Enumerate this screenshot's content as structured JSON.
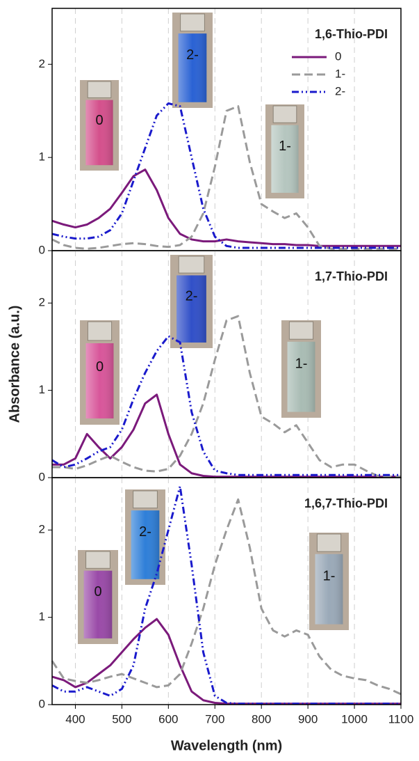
{
  "chart_data": [
    {
      "type": "line",
      "title": "1,6-Thio-PDI",
      "legend": "upper right",
      "grid": true,
      "x": [
        350,
        375,
        400,
        425,
        450,
        475,
        500,
        525,
        550,
        575,
        600,
        625,
        650,
        675,
        700,
        725,
        750,
        775,
        800,
        825,
        850,
        875,
        900,
        925,
        950,
        975,
        1000,
        1025,
        1050,
        1075,
        1100
      ],
      "xlim": [
        350,
        1100
      ],
      "ylim": [
        0,
        2.6
      ],
      "yticks": [
        0,
        1,
        2
      ],
      "series": [
        {
          "name": "0",
          "color": "#7b1a7b",
          "style": "solid",
          "values": [
            0.32,
            0.28,
            0.25,
            0.28,
            0.35,
            0.45,
            0.62,
            0.8,
            0.87,
            0.65,
            0.35,
            0.18,
            0.12,
            0.1,
            0.1,
            0.12,
            0.1,
            0.09,
            0.08,
            0.07,
            0.07,
            0.06,
            0.06,
            0.05,
            0.05,
            0.05,
            0.05,
            0.05,
            0.05,
            0.05,
            0.05
          ]
        },
        {
          "name": "1-",
          "color": "#9a9a9a",
          "style": "dash",
          "values": [
            0.12,
            0.06,
            0.03,
            0.02,
            0.03,
            0.05,
            0.07,
            0.08,
            0.07,
            0.05,
            0.04,
            0.06,
            0.15,
            0.4,
            0.9,
            1.5,
            1.55,
            0.95,
            0.5,
            0.42,
            0.35,
            0.4,
            0.25,
            0.05,
            0.02,
            0.02,
            0.02,
            0.02,
            0.02,
            0.02,
            0.02
          ]
        },
        {
          "name": "2-",
          "color": "#1a1acc",
          "style": "dashdotdot",
          "values": [
            0.18,
            0.15,
            0.13,
            0.13,
            0.15,
            0.22,
            0.4,
            0.75,
            1.1,
            1.45,
            1.58,
            1.55,
            1.0,
            0.45,
            0.15,
            0.05,
            0.03,
            0.03,
            0.03,
            0.03,
            0.03,
            0.03,
            0.03,
            0.03,
            0.03,
            0.03,
            0.03,
            0.03,
            0.03,
            0.03,
            0.03
          ]
        }
      ],
      "annotations": [
        {
          "text": "2-",
          "color": "#2a62d4"
        },
        {
          "text": "0",
          "color": "#d4508c"
        },
        {
          "text": "1-",
          "color": "#b5c6bf"
        }
      ]
    },
    {
      "type": "line",
      "title": "1,7-Thio-PDI",
      "ylabel": "Absorbance (a.u.)",
      "grid": true,
      "x": [
        350,
        375,
        400,
        425,
        450,
        475,
        500,
        525,
        550,
        575,
        600,
        625,
        650,
        675,
        700,
        725,
        750,
        775,
        800,
        825,
        850,
        875,
        900,
        925,
        950,
        975,
        1000,
        1025,
        1050,
        1075,
        1100
      ],
      "xlim": [
        350,
        1100
      ],
      "ylim": [
        0,
        2.6
      ],
      "yticks": [
        0,
        1,
        2
      ],
      "series": [
        {
          "color": "#7b1a7b",
          "style": "solid",
          "values": [
            0.15,
            0.15,
            0.22,
            0.5,
            0.35,
            0.22,
            0.35,
            0.55,
            0.85,
            0.95,
            0.5,
            0.15,
            0.05,
            0.02,
            0.01,
            0.01,
            0.01,
            0.01,
            0.01,
            0.01,
            0.01,
            0.01,
            0.01,
            0.01,
            0.01,
            0.01,
            0.01,
            0.01,
            0.01,
            0.01,
            0.01
          ]
        },
        {
          "color": "#9a9a9a",
          "style": "dash",
          "values": [
            0.12,
            0.12,
            0.1,
            0.14,
            0.2,
            0.25,
            0.18,
            0.12,
            0.08,
            0.07,
            0.1,
            0.25,
            0.5,
            0.85,
            1.35,
            1.8,
            1.85,
            1.2,
            0.7,
            0.62,
            0.52,
            0.6,
            0.4,
            0.2,
            0.12,
            0.15,
            0.15,
            0.08,
            0.02,
            0.01,
            0.01
          ]
        },
        {
          "color": "#1a1acc",
          "style": "dashdotdot",
          "values": [
            0.2,
            0.12,
            0.15,
            0.22,
            0.3,
            0.35,
            0.55,
            0.9,
            1.2,
            1.45,
            1.62,
            1.55,
            0.75,
            0.3,
            0.08,
            0.05,
            0.03,
            0.03,
            0.03,
            0.03,
            0.03,
            0.03,
            0.03,
            0.03,
            0.03,
            0.03,
            0.03,
            0.03,
            0.03,
            0.03,
            0.03
          ]
        }
      ],
      "annotations": [
        {
          "text": "2-",
          "color": "#3150c8"
        },
        {
          "text": "0",
          "color": "#d8569a"
        },
        {
          "text": "1-",
          "color": "#a9bcb4"
        }
      ]
    },
    {
      "type": "line",
      "title": "1,6,7-Thio-PDI",
      "xlabel": "Wavelength (nm)",
      "grid": true,
      "x": [
        350,
        375,
        400,
        425,
        450,
        475,
        500,
        525,
        550,
        575,
        600,
        625,
        650,
        675,
        700,
        725,
        750,
        775,
        800,
        825,
        850,
        875,
        900,
        925,
        950,
        975,
        1000,
        1025,
        1050,
        1075,
        1100
      ],
      "xlim": [
        350,
        1100
      ],
      "xticks": [
        400,
        500,
        600,
        700,
        800,
        900,
        1000,
        1100
      ],
      "ylim": [
        0,
        2.6
      ],
      "yticks": [
        0,
        1,
        2
      ],
      "series": [
        {
          "color": "#7b1a7b",
          "style": "solid",
          "values": [
            0.32,
            0.28,
            0.2,
            0.25,
            0.35,
            0.45,
            0.6,
            0.75,
            0.88,
            0.98,
            0.8,
            0.45,
            0.15,
            0.05,
            0.02,
            0.01,
            0.01,
            0.01,
            0.01,
            0.01,
            0.01,
            0.01,
            0.01,
            0.01,
            0.01,
            0.01,
            0.01,
            0.01,
            0.01,
            0.01,
            0.01
          ]
        },
        {
          "color": "#9a9a9a",
          "style": "dash",
          "values": [
            0.5,
            0.3,
            0.27,
            0.25,
            0.28,
            0.32,
            0.35,
            0.3,
            0.25,
            0.2,
            0.22,
            0.35,
            0.7,
            1.1,
            1.6,
            2.0,
            2.35,
            1.8,
            1.1,
            0.85,
            0.78,
            0.85,
            0.8,
            0.55,
            0.4,
            0.33,
            0.3,
            0.28,
            0.22,
            0.18,
            0.12
          ]
        },
        {
          "color": "#1a1acc",
          "style": "dashdotdot",
          "values": [
            0.22,
            0.15,
            0.15,
            0.2,
            0.15,
            0.1,
            0.18,
            0.45,
            1.1,
            1.5,
            2.0,
            2.5,
            1.6,
            0.6,
            0.1,
            0.02,
            0.01,
            0.01,
            0.01,
            0.01,
            0.01,
            0.01,
            0.01,
            0.01,
            0.01,
            0.01,
            0.01,
            0.01,
            0.01,
            0.01,
            0.01
          ]
        }
      ],
      "annotations": [
        {
          "text": "0",
          "color": "#9a4aa8"
        },
        {
          "text": "2-",
          "color": "#2f7fd8"
        },
        {
          "text": "1-",
          "color": "#9aa9b8"
        }
      ]
    }
  ]
}
